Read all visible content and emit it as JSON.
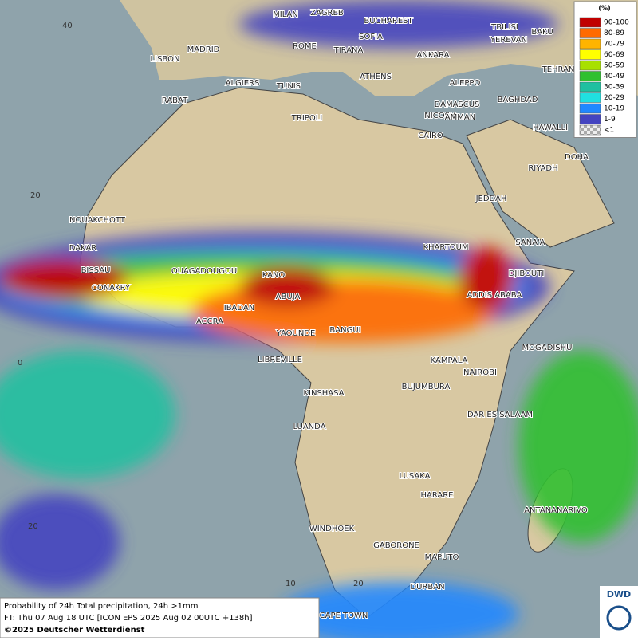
{
  "map": {
    "cities": [
      "MILAN",
      "ZAGREB",
      "BUCHAREST",
      "TBILISI",
      "BAKU",
      "LISBON",
      "MADRID",
      "ROME",
      "SOFIA",
      "YEREVAN",
      "TIRANA",
      "ANKARA",
      "TEHRAN",
      "ALGIERS",
      "TUNIS",
      "ATHENS",
      "ALEPPO",
      "RABAT",
      "NICOSIA",
      "BAGHDAD",
      "TRIPOLI",
      "DAMASCUS",
      "AMMAN",
      "HAWALLI",
      "CAIRO",
      "DOHA",
      "RIYADH",
      "JEDDAH",
      "NOUAKCHOTT",
      "KHARTOUM",
      "SANA'A",
      "DAKAR",
      "BISSAU",
      "OUAGADOUGOU",
      "KANO",
      "DJIBOUTI",
      "CONAKRY",
      "ABUJA",
      "ADDIS ABABA",
      "IBADAN",
      "ACCRA",
      "YAOUNDE",
      "BANGUI",
      "MOGADISHU",
      "LIBREVILLE",
      "KAMPALA",
      "NAIROBI",
      "KINSHASA",
      "BUJUMBURA",
      "DAR ES SALAAM",
      "LUANDA",
      "LUSAKA",
      "HARARE",
      "ANTANANARIVO",
      "WINDHOEK",
      "GABORONE",
      "MAPUTO",
      "DURBAN",
      "CAPE TOWN"
    ],
    "grid_labels": [
      "40",
      "20",
      "0",
      "20",
      "10",
      "20"
    ],
    "legend": {
      "title": "(%)",
      "items": [
        {
          "label": "90-100",
          "color": "#c00000"
        },
        {
          "label": "80-89",
          "color": "#ff6a00"
        },
        {
          "label": "70-79",
          "color": "#ffb400"
        },
        {
          "label": "60-69",
          "color": "#ffff00"
        },
        {
          "label": "50-59",
          "color": "#a8e000"
        },
        {
          "label": "40-49",
          "color": "#30c030"
        },
        {
          "label": "30-39",
          "color": "#20c0a0"
        },
        {
          "label": "20-29",
          "color": "#20e0e0"
        },
        {
          "label": "10-19",
          "color": "#2088ff"
        },
        {
          "label": "1-9",
          "color": "#4444c0"
        },
        {
          "label": "<1",
          "color": "checkered"
        }
      ]
    },
    "footer": {
      "line1": "Probability of 24h Total precipitation, 24h >1mm",
      "line2": "FT: Thu 07 Aug 18 UTC [ICON EPS 2025 Aug 02 00UTC +138h]",
      "line3": "©2025 Deutscher Wetterdienst"
    },
    "logo": "DWD"
  }
}
